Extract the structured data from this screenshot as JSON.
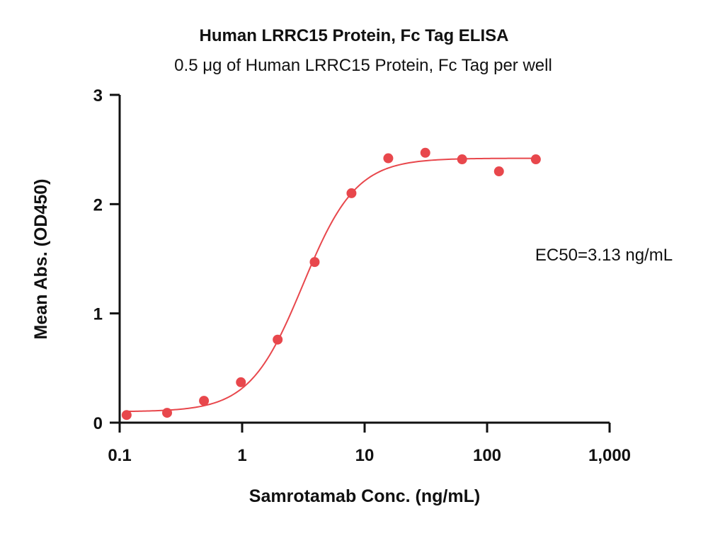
{
  "chart_data": {
    "type": "scatter",
    "title": "Human LRRC15 Protein, Fc Tag ELISA",
    "subtitle": "0.5 μg of Human LRRC15 Protein, Fc Tag per well",
    "xlabel": "Samrotamab Conc. (ng/mL)",
    "ylabel": "Mean Abs. (OD450)",
    "x_scale": "log",
    "xlim": [
      0.1,
      1000
    ],
    "ylim": [
      0,
      3
    ],
    "x_ticks": [
      0.1,
      1,
      10,
      100,
      1000
    ],
    "x_tick_labels": [
      "0.1",
      "1",
      "10",
      "100",
      "1,000"
    ],
    "y_ticks": [
      0,
      1,
      2,
      3
    ],
    "y_tick_labels": [
      "0",
      "1",
      "2",
      "3"
    ],
    "grid": false,
    "color": "#e8474c",
    "series": [
      {
        "x": [
          0.114,
          0.244,
          0.488,
          0.977,
          1.95,
          3.91,
          7.81,
          15.6,
          31.3,
          62.5,
          125,
          250
        ],
        "y": [
          0.07,
          0.09,
          0.2,
          0.37,
          0.76,
          1.47,
          2.1,
          2.42,
          2.47,
          2.41,
          2.3,
          2.41
        ]
      }
    ],
    "fit": {
      "model": "4PL",
      "bottom": 0.1,
      "top": 2.42,
      "ec50": 3.13,
      "hill": 2.0
    },
    "annotation": "EC50=3.13 ng/mL"
  }
}
